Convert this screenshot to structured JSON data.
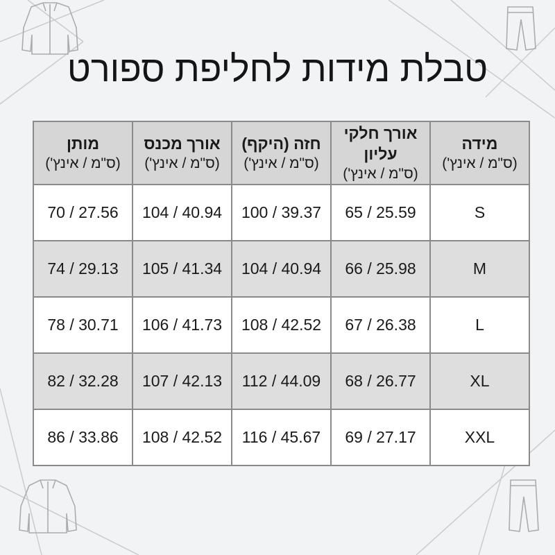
{
  "title": "טבלת מידות לחליפת ספורט",
  "columns": [
    {
      "label": "מידה",
      "unit": "(ס\"מ / אינץ')"
    },
    {
      "label": "אורך חלקי עליון",
      "unit": "(ס\"מ / אינץ')"
    },
    {
      "label": "חזה (היקף)",
      "unit": "(ס\"מ / אינץ')"
    },
    {
      "label": "אורך מכנס",
      "unit": "(ס\"מ / אינץ')"
    },
    {
      "label": "מותן",
      "unit": "(ס\"מ / אינץ')"
    }
  ],
  "rows": [
    [
      "S",
      "65 / 25.59",
      "100 / 39.37",
      "104 / 40.94",
      "70 / 27.56"
    ],
    [
      "M",
      "66 / 25.98",
      "104 / 40.94",
      "105 / 41.34",
      "74 / 29.13"
    ],
    [
      "L",
      "67 / 26.38",
      "108 / 42.52",
      "106 / 41.73",
      "78 / 30.71"
    ],
    [
      "XL",
      "68 / 26.77",
      "112 / 44.09",
      "107 / 42.13",
      "82 / 32.28"
    ],
    [
      "XXL",
      "69 / 27.17",
      "116 / 45.67",
      "108 / 42.52",
      "86 / 33.86"
    ]
  ],
  "icons": [
    "jacket-icon",
    "pants-icon",
    "jacket-icon",
    "pants-icon"
  ]
}
